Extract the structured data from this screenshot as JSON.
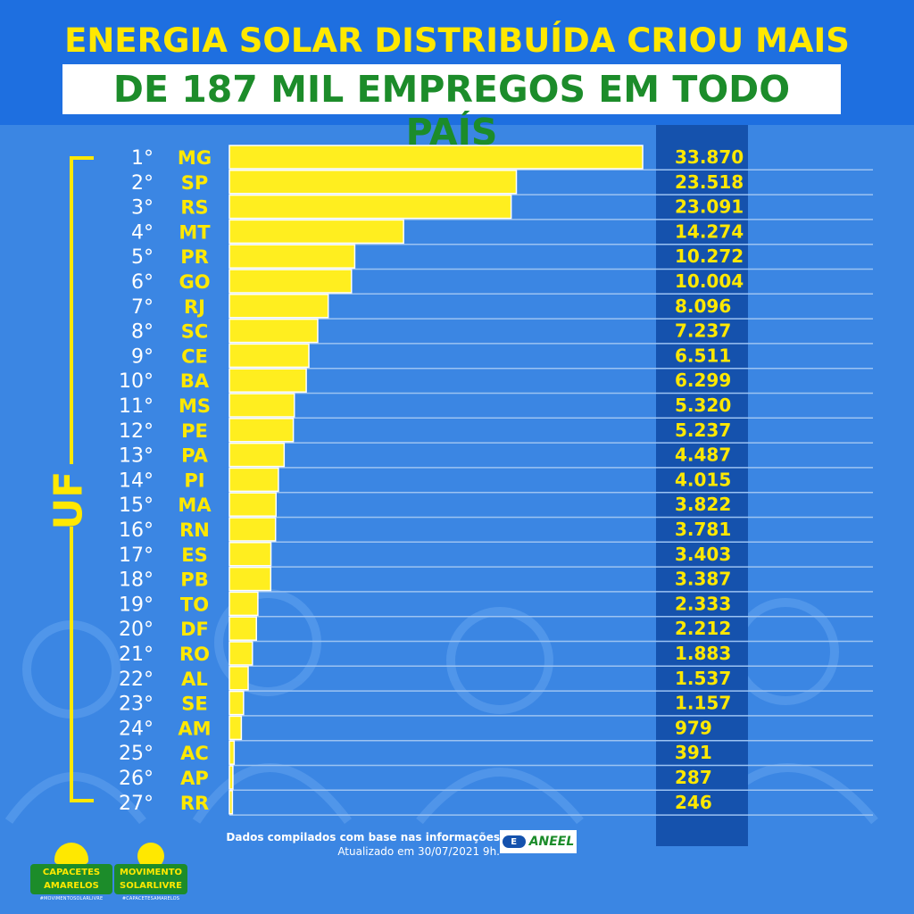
{
  "header": {
    "title_line1": "ENERGIA SOLAR DISTRIBUÍDA CRIOU MAIS",
    "title_line2": "DE 187 MIL EMPREGOS EM TODO PAÍS"
  },
  "axis_group_label": "UF",
  "colors": {
    "bar": "#ffee1f",
    "rank_text": "#ffffff",
    "uf_text": "#ffe800",
    "value_text": "#ffe800",
    "title1": "#ffe800",
    "title2": "#1c8c2a",
    "value_column": "#1552ad",
    "background": "#3b86e3"
  },
  "chart_data": {
    "type": "bar",
    "orientation": "horizontal",
    "title": "ENERGIA SOLAR DISTRIBUÍDA CRIOU MAIS DE 187 MIL EMPREGOS EM TODO PAÍS",
    "categories": [
      "MG",
      "SP",
      "RS",
      "MT",
      "PR",
      "GO",
      "RJ",
      "SC",
      "CE",
      "BA",
      "MS",
      "PE",
      "PA",
      "PI",
      "MA",
      "RN",
      "ES",
      "PB",
      "TO",
      "DF",
      "RO",
      "AL",
      "SE",
      "AM",
      "AC",
      "AP",
      "RR"
    ],
    "ranks": [
      "1°",
      "2°",
      "3°",
      "4°",
      "5°",
      "6°",
      "7°",
      "8°",
      "9°",
      "10°",
      "11°",
      "12°",
      "13°",
      "14°",
      "15°",
      "16°",
      "17°",
      "18°",
      "19°",
      "20°",
      "21°",
      "22°",
      "23°",
      "24°",
      "25°",
      "26°",
      "27°"
    ],
    "values": [
      33870,
      23518,
      23091,
      14274,
      10272,
      10004,
      8096,
      7237,
      6511,
      6299,
      5320,
      5237,
      4487,
      4015,
      3822,
      3781,
      3403,
      3387,
      2333,
      2212,
      1883,
      1537,
      1157,
      979,
      391,
      287,
      246
    ],
    "value_labels": [
      "33.870",
      "23.518",
      "23.091",
      "14.274",
      "10.272",
      "10.004",
      "8.096",
      "7.237",
      "6.511",
      "6.299",
      "5.320",
      "5.237",
      "4.487",
      "4.015",
      "3.822",
      "3.781",
      "3.403",
      "3.387",
      "2.333",
      "2.212",
      "1.883",
      "1.537",
      "1.157",
      "979",
      "391",
      "287",
      "246"
    ],
    "xlabel": "",
    "ylabel": "UF",
    "grid": true,
    "legend": "none"
  },
  "footer": {
    "source_line1": "Dados compilados com base nas informações",
    "source_line2": "Atualizado em 30/07/2021 9h.",
    "aneel_label": "ANEEL",
    "aneel_icon": "E",
    "logo1_line1": "CAPACETES",
    "logo1_line2": "AMARELOS",
    "logo1_tag": "#MOVIMENTOSOLARLIVRE",
    "logo2_line1": "MOVIMENTO",
    "logo2_line2": "SOLARLIVRE",
    "logo2_tag": "#CAPACETESAMARELOS"
  }
}
